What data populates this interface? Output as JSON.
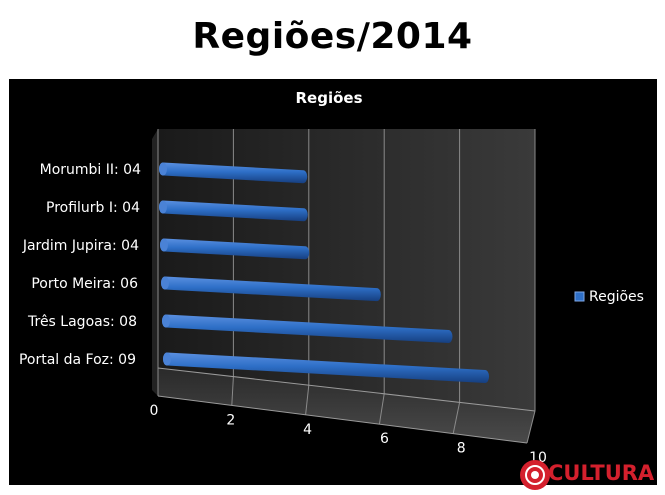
{
  "slide": {
    "title": "Regiões/2014"
  },
  "logo": {
    "text": "CULTURA",
    "icon": "radio-signal-icon"
  },
  "chart_data": {
    "type": "bar",
    "orientation": "horizontal",
    "style": "3d-cylinder",
    "title": "Regiões",
    "xlabel": "",
    "ylabel": "",
    "categories": [
      "Portal da Foz: 09",
      "Três Lagoas: 08",
      "Porto Meira: 06",
      "Jardim Jupira: 04",
      "Profilurb I: 04",
      "Morumbi II: 04"
    ],
    "series": [
      {
        "name": "Regiões",
        "values": [
          9,
          8,
          6,
          4,
          4,
          4
        ],
        "color": "#2e6fc7"
      }
    ],
    "xlim": [
      0,
      10
    ],
    "xticks": [
      "0",
      "2",
      "4",
      "6",
      "8",
      "10"
    ],
    "grid": true,
    "legend": "right",
    "background": "#000000",
    "text_color": "#ffffff"
  }
}
